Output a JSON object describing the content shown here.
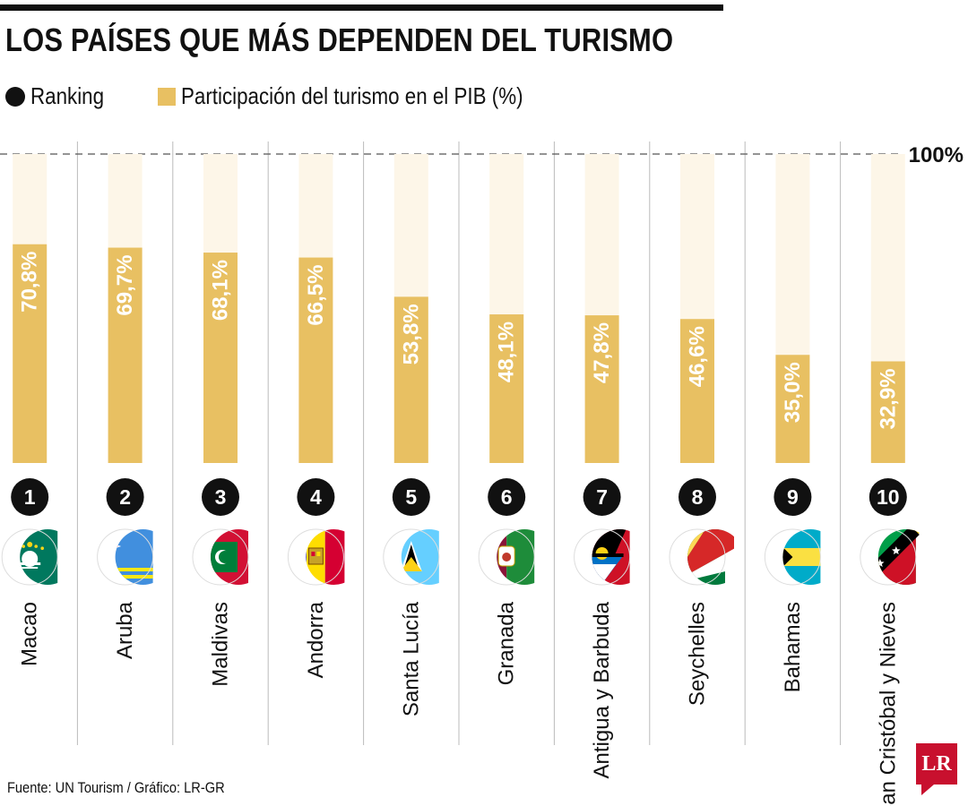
{
  "title": "LOS PAÍSES QUE MÁS DEPENDEN DEL TURISMO",
  "legend": [
    {
      "label": "Ranking",
      "marker": "dot"
    },
    {
      "label": "Participación del turismo en el PIB (%)",
      "marker": "square"
    }
  ],
  "source": "Fuente: UN Tourism / Gráfico: LR-GR",
  "logo": "LR",
  "colors": {
    "bar": "#e8c062",
    "bar_background": "#fdf6e8",
    "rank_circle": "#111111",
    "divider": "#bbbbbb",
    "logo": "#c8102e"
  },
  "chart_data": {
    "type": "bar",
    "reference_line_label": "100%",
    "ylim": [
      0,
      100
    ],
    "grid": false,
    "categories": [
      "Macao",
      "Aruba",
      "Maldivas",
      "Andorra",
      "Santa Lucía",
      "Granada",
      "Antigua y Barbuda",
      "Seychelles",
      "Bahamas",
      "San Cristóbal y Nieves"
    ],
    "ranks": [
      "1",
      "2",
      "3",
      "4",
      "5",
      "6",
      "7",
      "8",
      "9",
      "10"
    ],
    "values": [
      70.8,
      69.7,
      68.1,
      66.5,
      53.8,
      48.1,
      47.8,
      46.6,
      35.0,
      32.9
    ],
    "value_labels": [
      "70,8%",
      "69,7%",
      "68,1%",
      "66,5%",
      "53,8%",
      "48,1%",
      "47,8%",
      "46,6%",
      "35,0%",
      "32,9%"
    ],
    "flags": [
      "flag-macao-icon",
      "flag-aruba-icon",
      "flag-maldives-icon",
      "flag-andorra-icon",
      "flag-saint-lucia-icon",
      "flag-grenada-icon",
      "flag-antigua-barbuda-icon",
      "flag-seychelles-icon",
      "flag-bahamas-icon",
      "flag-saint-kitts-nevis-icon"
    ]
  }
}
